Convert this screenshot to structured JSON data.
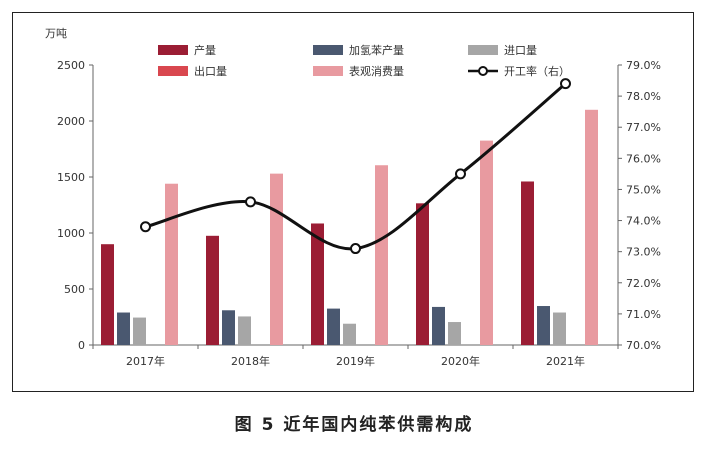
{
  "caption": "图 5  近年国内纯苯供需构成",
  "chart_data": {
    "type": "bar",
    "title": "",
    "y_unit_label": "万吨",
    "categories": [
      "2017年",
      "2018年",
      "2019年",
      "2020年",
      "2021年"
    ],
    "ylim": [
      0,
      2500
    ],
    "yticks": [
      0,
      500,
      1000,
      1500,
      2000,
      2500
    ],
    "y2lim": [
      70.0,
      79.0
    ],
    "y2ticks": [
      "70.0%",
      "71.0%",
      "72.0%",
      "73.0%",
      "74.0%",
      "75.0%",
      "76.0%",
      "77.0%",
      "78.0%",
      "79.0%"
    ],
    "grid": false,
    "legend_position": "top",
    "series": [
      {
        "name": "产量",
        "type": "bar",
        "color": "#9b1d34",
        "values": [
          900,
          975,
          1085,
          1265,
          1460
        ]
      },
      {
        "name": "加氢苯产量",
        "type": "bar",
        "color": "#4a5870",
        "values": [
          290,
          310,
          325,
          340,
          348
        ]
      },
      {
        "name": "进口量",
        "type": "bar",
        "color": "#a6a6a6",
        "values": [
          245,
          255,
          190,
          205,
          290
        ]
      },
      {
        "name": "出口量",
        "type": "bar",
        "color": "#d9474f",
        "values": [
          0,
          0,
          0,
          0,
          0
        ]
      },
      {
        "name": "表观消费量",
        "type": "bar",
        "color": "#e89aa0",
        "values": [
          1440,
          1530,
          1605,
          1825,
          2100
        ]
      },
      {
        "name": "开工率（右）",
        "type": "line",
        "axis": "right",
        "color": "#111111",
        "values": [
          73.8,
          74.6,
          73.1,
          75.5,
          78.4
        ]
      }
    ]
  }
}
